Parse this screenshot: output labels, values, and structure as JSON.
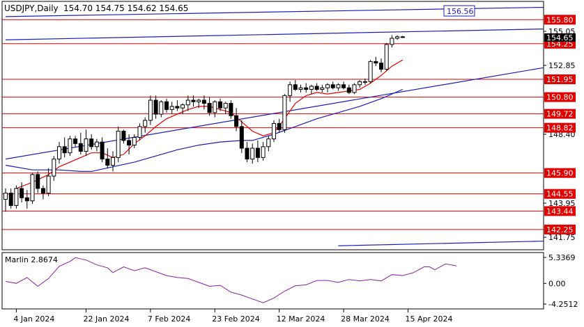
{
  "header": {
    "symbol_timeframe": "USDJPY,Daily",
    "ohlc": "154.70 154.75 154.62 154.65"
  },
  "indicator": {
    "label": "Marlin 2.8674",
    "color": "#8b1fa3",
    "levels": [
      5.3369,
      0.0,
      -4.2512
    ],
    "level_labels": [
      "5.3369",
      "0.00",
      "-4.2512"
    ]
  },
  "colors": {
    "resistance_lines": "#e00000",
    "channel_lines": "#1c1cb4",
    "ma_fast": "#e00000",
    "ma_slow": "#1c1cb4",
    "level_label_bg": "#e00000",
    "bull_candle": "#ffffff",
    "bear_candle": "#000000"
  },
  "chart_data": {
    "type": "candlestick",
    "title": "USDJPY,Daily",
    "x_tick_labels": [
      "4 Jan 2024",
      "22 Jan 2024",
      "7 Feb 2024",
      "23 Feb 2024",
      "12 Mar 2024",
      "28 Mar 2024",
      "15 Apr 2024"
    ],
    "x_tick_index": [
      2,
      15,
      27,
      39,
      51,
      63,
      75
    ],
    "ylim": [
      141.2,
      156.2
    ],
    "y_tick_labels": [
      "155.05",
      "152.85",
      "148.40",
      "143.95",
      "141.75"
    ],
    "price_levels": [
      155.8,
      154.25,
      151.95,
      150.8,
      149.72,
      148.82,
      145.9,
      144.55,
      143.44,
      142.25
    ],
    "channel_label": "156.56",
    "current_price": "154.65",
    "candles": [
      [
        144.2,
        144.9,
        143.4,
        144.6
      ],
      [
        144.6,
        144.9,
        143.6,
        143.8
      ],
      [
        143.8,
        145.1,
        143.6,
        144.9
      ],
      [
        144.9,
        145.3,
        144.0,
        144.3
      ],
      [
        144.3,
        144.8,
        143.6,
        144.1
      ],
      [
        144.1,
        145.9,
        143.9,
        145.8
      ],
      [
        145.8,
        146.0,
        144.6,
        144.9
      ],
      [
        144.9,
        145.1,
        144.2,
        144.6
      ],
      [
        144.6,
        146.2,
        144.4,
        145.7
      ],
      [
        145.7,
        147.0,
        145.4,
        146.8
      ],
      [
        146.8,
        147.9,
        146.5,
        147.6
      ],
      [
        147.6,
        148.2,
        146.9,
        147.2
      ],
      [
        147.2,
        148.3,
        147.0,
        148.1
      ],
      [
        148.1,
        148.3,
        147.6,
        147.8
      ],
      [
        147.8,
        148.5,
        147.1,
        147.3
      ],
      [
        147.3,
        148.7,
        147.0,
        148.1
      ],
      [
        148.1,
        148.4,
        147.4,
        147.6
      ],
      [
        147.6,
        148.1,
        147.3,
        147.9
      ],
      [
        147.9,
        148.2,
        146.6,
        146.8
      ],
      [
        146.8,
        147.5,
        146.2,
        146.4
      ],
      [
        146.4,
        147.3,
        146.0,
        146.9
      ],
      [
        146.9,
        148.9,
        146.6,
        148.6
      ],
      [
        148.6,
        148.7,
        147.8,
        148.0
      ],
      [
        148.0,
        148.4,
        147.1,
        147.7
      ],
      [
        147.7,
        148.4,
        147.5,
        148.2
      ],
      [
        148.2,
        149.1,
        148.0,
        148.9
      ],
      [
        148.9,
        149.5,
        148.5,
        149.3
      ],
      [
        149.3,
        150.9,
        149.0,
        150.6
      ],
      [
        150.6,
        150.9,
        149.4,
        149.7
      ],
      [
        149.7,
        150.6,
        149.5,
        150.5
      ],
      [
        150.5,
        150.7,
        149.8,
        150.0
      ],
      [
        150.0,
        150.5,
        149.7,
        150.2
      ],
      [
        150.2,
        150.6,
        149.9,
        150.1
      ],
      [
        150.1,
        150.4,
        149.7,
        150.3
      ],
      [
        150.3,
        150.9,
        149.9,
        150.6
      ],
      [
        150.6,
        150.9,
        150.2,
        150.5
      ],
      [
        150.5,
        150.7,
        150.1,
        150.6
      ],
      [
        150.6,
        150.9,
        150.0,
        150.4
      ],
      [
        150.4,
        150.8,
        149.6,
        149.8
      ],
      [
        149.8,
        150.6,
        149.5,
        150.5
      ],
      [
        150.5,
        150.7,
        149.9,
        150.1
      ],
      [
        150.1,
        150.5,
        149.7,
        150.4
      ],
      [
        150.4,
        150.6,
        149.4,
        149.6
      ],
      [
        149.6,
        150.1,
        148.6,
        148.9
      ],
      [
        148.9,
        149.3,
        147.2,
        147.5
      ],
      [
        147.5,
        147.9,
        146.6,
        146.8
      ],
      [
        146.8,
        147.8,
        146.5,
        147.5
      ],
      [
        147.5,
        148.0,
        146.6,
        146.9
      ],
      [
        146.9,
        147.9,
        146.7,
        147.6
      ],
      [
        147.6,
        148.3,
        147.3,
        148.1
      ],
      [
        148.1,
        149.3,
        147.9,
        149.1
      ],
      [
        149.1,
        149.4,
        148.5,
        148.7
      ],
      [
        148.7,
        151.0,
        148.5,
        150.9
      ],
      [
        150.9,
        151.8,
        150.5,
        151.6
      ],
      [
        151.6,
        151.9,
        151.2,
        151.3
      ],
      [
        151.3,
        151.6,
        151.1,
        151.4
      ],
      [
        151.4,
        151.7,
        151.1,
        151.3
      ],
      [
        151.3,
        151.6,
        151.0,
        151.5
      ],
      [
        151.5,
        151.7,
        151.2,
        151.3
      ],
      [
        151.3,
        151.6,
        151.1,
        151.4
      ],
      [
        151.4,
        151.7,
        151.1,
        151.6
      ],
      [
        151.6,
        151.8,
        151.3,
        151.4
      ],
      [
        151.4,
        151.7,
        151.2,
        151.6
      ],
      [
        151.6,
        151.8,
        151.3,
        151.4
      ],
      [
        151.4,
        151.6,
        151.0,
        151.1
      ],
      [
        151.1,
        151.7,
        151.0,
        151.6
      ],
      [
        151.6,
        151.9,
        151.4,
        151.8
      ],
      [
        151.8,
        152.0,
        151.6,
        151.8
      ],
      [
        151.8,
        153.2,
        151.7,
        153.1
      ],
      [
        153.1,
        153.4,
        152.8,
        153.0
      ],
      [
        153.0,
        153.3,
        152.4,
        152.6
      ],
      [
        152.6,
        154.3,
        152.5,
        154.2
      ],
      [
        154.2,
        154.8,
        154.0,
        154.6
      ],
      [
        154.6,
        154.8,
        154.5,
        154.7
      ],
      [
        154.7,
        154.75,
        154.62,
        154.65
      ]
    ],
    "moving_averages": [
      {
        "color": "#e00000",
        "values": [
          [
            2,
            144.9
          ],
          [
            5,
            145.3
          ],
          [
            8,
            145.8
          ],
          [
            10,
            146.3
          ],
          [
            12,
            146.6
          ],
          [
            14,
            146.9
          ],
          [
            16,
            147.2
          ],
          [
            18,
            147.2
          ],
          [
            20,
            146.9
          ],
          [
            22,
            147.1
          ],
          [
            24,
            147.8
          ],
          [
            26,
            148.3
          ],
          [
            28,
            148.9
          ],
          [
            30,
            149.4
          ],
          [
            32,
            149.7
          ],
          [
            34,
            150.0
          ],
          [
            36,
            150.2
          ],
          [
            38,
            150.2
          ],
          [
            40,
            150.0
          ],
          [
            42,
            149.8
          ],
          [
            44,
            149.2
          ],
          [
            46,
            148.6
          ],
          [
            48,
            148.3
          ],
          [
            50,
            148.5
          ],
          [
            52,
            149.4
          ],
          [
            54,
            150.4
          ],
          [
            56,
            150.9
          ],
          [
            58,
            151.1
          ],
          [
            60,
            151.0
          ],
          [
            62,
            151.1
          ],
          [
            64,
            151.2
          ],
          [
            66,
            151.3
          ],
          [
            68,
            151.7
          ],
          [
            70,
            152.2
          ],
          [
            72,
            152.8
          ],
          [
            74,
            153.2
          ]
        ]
      },
      {
        "color": "#1c1cb4",
        "values": [
          [
            0,
            146.4
          ],
          [
            5,
            146.1
          ],
          [
            10,
            146.1
          ],
          [
            14,
            146.0
          ],
          [
            16,
            146.0
          ],
          [
            20,
            146.3
          ],
          [
            24,
            146.6
          ],
          [
            28,
            147.0
          ],
          [
            32,
            147.4
          ],
          [
            36,
            147.7
          ],
          [
            40,
            147.9
          ],
          [
            44,
            148.0
          ],
          [
            46,
            148.0
          ],
          [
            50,
            148.4
          ],
          [
            54,
            148.9
          ],
          [
            58,
            149.4
          ],
          [
            62,
            149.8
          ],
          [
            66,
            150.2
          ],
          [
            70,
            150.7
          ],
          [
            74,
            151.3
          ]
        ]
      }
    ],
    "channel_lines": [
      {
        "color": "#1c1cb4",
        "from": [
          0,
          146.8
        ],
        "to": [
          124,
          152.7
        ]
      },
      {
        "color": "#1c1cb4",
        "from": [
          0,
          154.5
        ],
        "to": [
          124,
          155.2
        ]
      },
      {
        "color": "#1c1cb4",
        "from": [
          0,
          156.0
        ],
        "to": [
          124,
          156.6
        ]
      },
      {
        "color": "#1c1cb4",
        "from": [
          62,
          141.2
        ],
        "to": [
          124,
          141.5
        ]
      }
    ],
    "marlin_values": [
      [
        0,
        0.4
      ],
      [
        2,
        0.0
      ],
      [
        4,
        1.2
      ],
      [
        6,
        -0.6
      ],
      [
        8,
        1.0
      ],
      [
        10,
        3.5
      ],
      [
        12,
        4.5
      ],
      [
        13,
        5.3
      ],
      [
        15,
        4.8
      ],
      [
        17,
        3.8
      ],
      [
        19,
        3.2
      ],
      [
        20,
        2.2
      ],
      [
        22,
        3.4
      ],
      [
        24,
        2.6
      ],
      [
        26,
        3.2
      ],
      [
        28,
        2.4
      ],
      [
        30,
        1.6
      ],
      [
        32,
        1.2
      ],
      [
        34,
        1.0
      ],
      [
        36,
        0.2
      ],
      [
        38,
        -0.6
      ],
      [
        40,
        -0.4
      ],
      [
        42,
        -1.8
      ],
      [
        44,
        -2.4
      ],
      [
        46,
        -3.2
      ],
      [
        48,
        -4.0
      ],
      [
        50,
        -3.0
      ],
      [
        52,
        -1.6
      ],
      [
        54,
        -0.5
      ],
      [
        56,
        -0.3
      ],
      [
        58,
        0.6
      ],
      [
        60,
        0.6
      ],
      [
        62,
        0.2
      ],
      [
        64,
        0.8
      ],
      [
        66,
        0.5
      ],
      [
        68,
        0.8
      ],
      [
        70,
        0.5
      ],
      [
        72,
        1.8
      ],
      [
        74,
        1.6
      ],
      [
        76,
        2.2
      ],
      [
        78,
        3.4
      ],
      [
        79,
        3.4
      ],
      [
        80,
        2.8
      ],
      [
        82,
        4.0
      ],
      [
        84,
        3.6
      ]
    ]
  }
}
